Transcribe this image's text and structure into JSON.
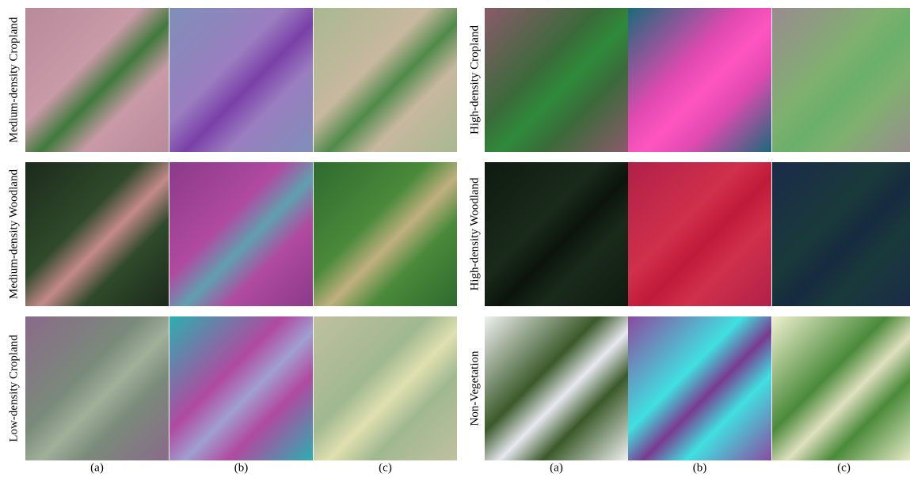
{
  "panels": [
    {
      "rows": [
        "Medium-density Cropland",
        "Medium-density Woodland",
        "Low-density Cropland"
      ],
      "columns": [
        "(a)",
        "(b)",
        "(c)"
      ]
    },
    {
      "rows": [
        "High-density Cropland",
        "High-density Woodland",
        "Non-Vegetation"
      ],
      "columns": [
        "(a)",
        "(b)",
        "(c)"
      ]
    }
  ]
}
